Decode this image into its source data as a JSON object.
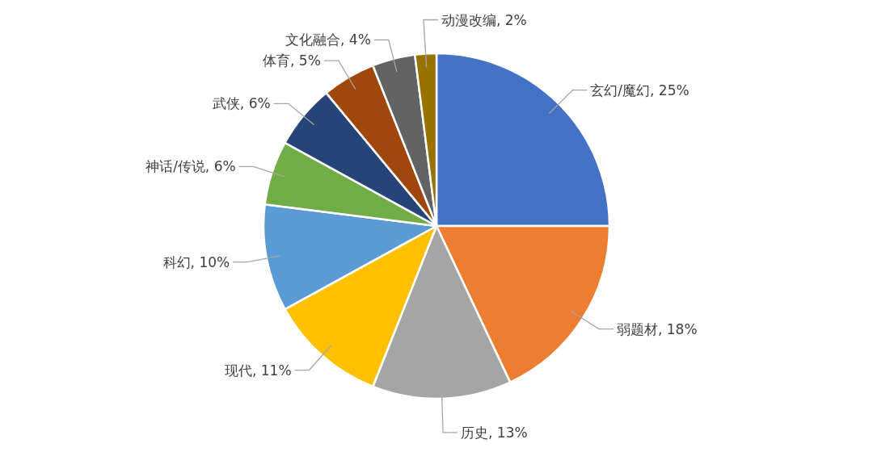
{
  "chart_data": {
    "type": "pie",
    "categories": [
      "玄幻/魔幻",
      "弱题材",
      "历史",
      "现代",
      "科幻",
      "神话/传说",
      "武侠",
      "体育",
      "文化融合",
      "动漫改编"
    ],
    "values": [
      25,
      18,
      13,
      11,
      10,
      6,
      6,
      5,
      4,
      2
    ],
    "value_labels": [
      "25%",
      "18%",
      "13%",
      "11%",
      "10%",
      "6%",
      "6%",
      "5%",
      "4%",
      "2%"
    ],
    "colors": [
      "#4472c4",
      "#ed7d31",
      "#a5a5a5",
      "#ffc000",
      "#5b9bd5",
      "#70ad47",
      "#264478",
      "#9e480e",
      "#636363",
      "#997300"
    ]
  }
}
